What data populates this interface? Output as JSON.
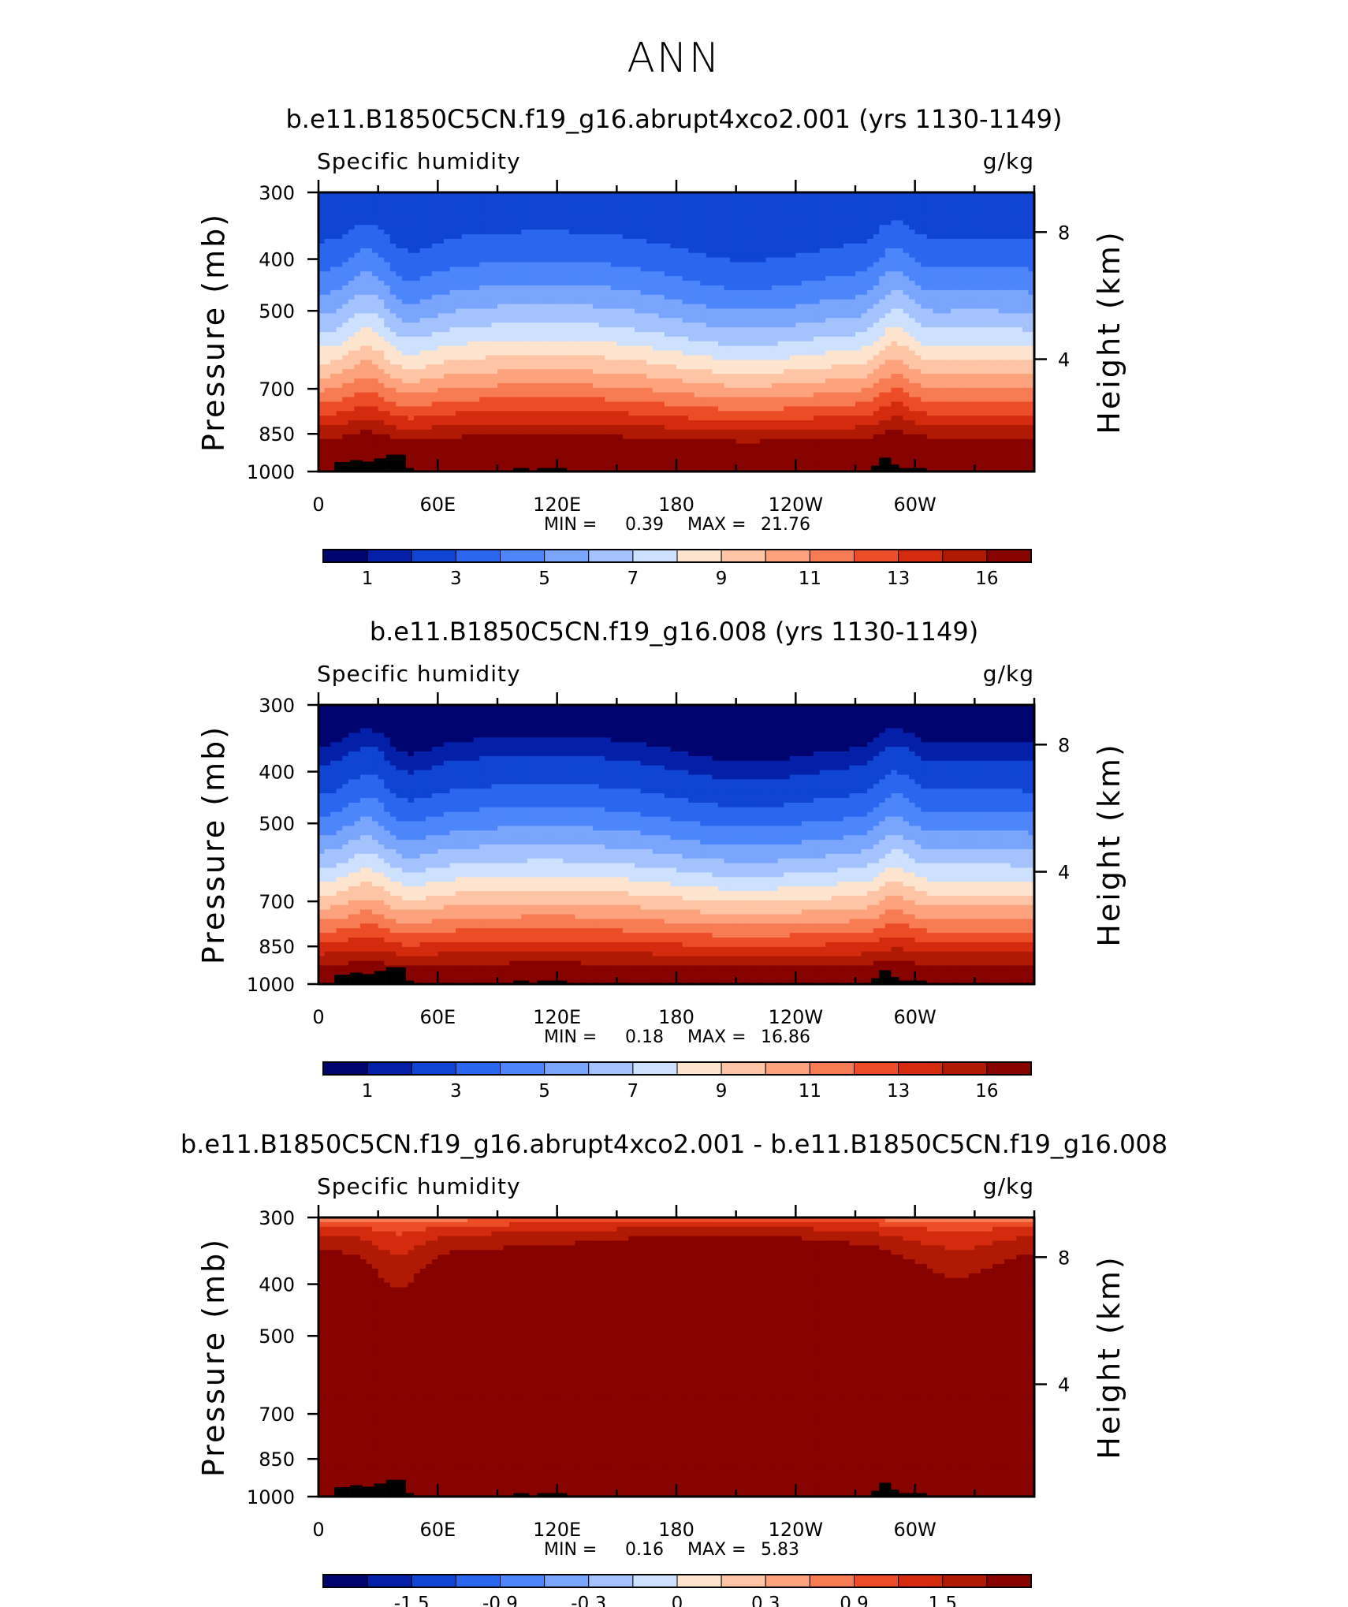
{
  "page_title": "ANN",
  "colors": {
    "fill_scale": [
      "#00046e",
      "#0420a8",
      "#0f45d2",
      "#2a66ee",
      "#4d86fb",
      "#7aa5fc",
      "#a4c2fd",
      "#cde0fe",
      "#fde4cf",
      "#fdc5a5",
      "#fca27c",
      "#f77b53",
      "#ec4d27",
      "#d42b0f",
      "#b01a05",
      "#870300"
    ],
    "topography": "#000000"
  },
  "axis_labels": {
    "left": "Pressure (mb)",
    "right": "Height (km)",
    "variable": "Specific humidity",
    "units": "g/kg"
  },
  "x_ticks": [
    "0",
    "60E",
    "120E",
    "180",
    "120W",
    "60W"
  ],
  "y_ticks_left": [
    "300",
    "400",
    "500",
    "700",
    "850",
    "1000"
  ],
  "y_ticks_right": [
    "8",
    "4"
  ],
  "chart_data": [
    {
      "type": "heatmap",
      "title": "b.e11.B1850C5CN.f19_g16.abrupt4xco2.001 (yrs 1130-1149)",
      "subtitle_left": "Specific humidity",
      "subtitle_right": "g/kg",
      "xlabel": "",
      "ylabel": "Pressure (mb)",
      "ylabel_right": "Height (km)",
      "xlim": [
        0,
        360
      ],
      "ylim": [
        1000,
        300
      ],
      "y_scale": "log",
      "min_label": "MIN =",
      "min_value": "0.39",
      "max_label": "MAX =",
      "max_value": "21.76",
      "colorbar_labels": [
        "1",
        "3",
        "5",
        "7",
        "9",
        "11",
        "13",
        "16"
      ]
    },
    {
      "type": "heatmap",
      "title": "b.e11.B1850C5CN.f19_g16.008 (yrs 1130-1149)",
      "subtitle_left": "Specific humidity",
      "subtitle_right": "g/kg",
      "xlabel": "",
      "ylabel": "Pressure (mb)",
      "ylabel_right": "Height (km)",
      "xlim": [
        0,
        360
      ],
      "ylim": [
        1000,
        300
      ],
      "y_scale": "log",
      "min_label": "MIN =",
      "min_value": "0.18",
      "max_label": "MAX =",
      "max_value": "16.86",
      "colorbar_labels": [
        "1",
        "3",
        "5",
        "7",
        "9",
        "11",
        "13",
        "16"
      ]
    },
    {
      "type": "heatmap",
      "title": "b.e11.B1850C5CN.f19_g16.abrupt4xco2.001 - b.e11.B1850C5CN.f19_g16.008",
      "subtitle_left": "Specific humidity",
      "subtitle_right": "g/kg",
      "xlabel": "",
      "ylabel": "Pressure (mb)",
      "ylabel_right": "Height (km)",
      "xlim": [
        0,
        360
      ],
      "ylim": [
        1000,
        300
      ],
      "y_scale": "log",
      "min_label": "MIN =",
      "min_value": "0.16",
      "max_label": "MAX =",
      "max_value": "5.83",
      "colorbar_labels": [
        "-1.5",
        "-0.9",
        "-0.3",
        "0",
        "0.3",
        "0.9",
        "1.5"
      ]
    }
  ]
}
